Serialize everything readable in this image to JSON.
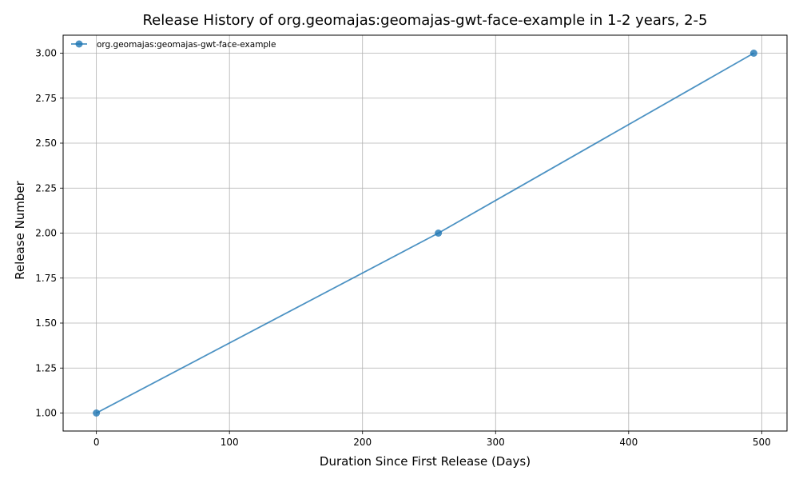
{
  "chart_data": {
    "type": "line",
    "title": "Release History of org.geomajas:geomajas-gwt-face-example in 1-2 years, 2-5",
    "xlabel": "Duration Since First Release (Days)",
    "ylabel": "Release Number",
    "xlim": [
      -25,
      519
    ],
    "ylim": [
      0.9,
      3.1
    ],
    "x_ticks": [
      0,
      100,
      200,
      300,
      400,
      500
    ],
    "y_ticks": [
      1.0,
      1.25,
      1.5,
      1.75,
      2.0,
      2.25,
      2.5,
      2.75,
      3.0
    ],
    "x_tick_labels": [
      "0",
      "100",
      "200",
      "300",
      "400",
      "500"
    ],
    "y_tick_labels": [
      "1.00",
      "1.25",
      "1.50",
      "1.75",
      "2.00",
      "2.25",
      "2.50",
      "2.75",
      "3.00"
    ],
    "grid": true,
    "legend_position": "top-left",
    "series": [
      {
        "name": "org.geomajas:geomajas-gwt-face-example",
        "color": "#1f77b4",
        "marker": "circle",
        "x": [
          0,
          257,
          494
        ],
        "y": [
          1,
          2,
          3
        ]
      }
    ]
  }
}
